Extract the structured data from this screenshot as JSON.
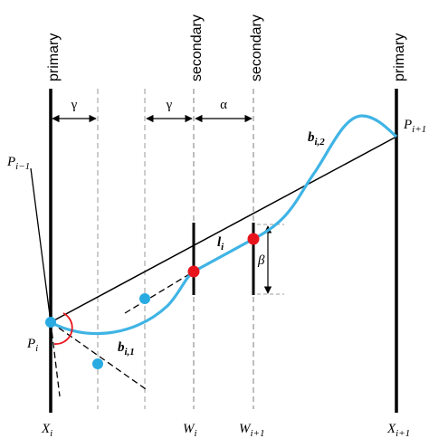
{
  "labels": {
    "primary_left": "primary",
    "primary_right": "primary",
    "secondary_1": "secondary",
    "secondary_2": "secondary",
    "gamma_left": "γ",
    "gamma_mid": "γ",
    "alpha": "α",
    "beta": "β",
    "P_prev": {
      "base": "P",
      "sub": "i−1"
    },
    "P_i": {
      "base": "P",
      "sub": "i"
    },
    "P_next": {
      "base": "P",
      "sub": "i+1"
    },
    "b_i1": {
      "base": "b",
      "sub": "i,1"
    },
    "b_i2": {
      "base": "b",
      "sub": "i,2"
    },
    "l_i": {
      "base": "l",
      "sub": "i"
    },
    "X_i": {
      "base": "X",
      "sub": "i"
    },
    "W_i": {
      "base": "W",
      "sub": "i"
    },
    "W_next": {
      "base": "W",
      "sub": "i+1"
    },
    "X_next": {
      "base": "X",
      "sub": "i+1"
    }
  },
  "colors": {
    "curve": "#3fb4e5",
    "control_point": "#29abe2",
    "waypoint": "#e8141c",
    "angle_arc": "#e8141c",
    "guide_line": "#b0b0b0",
    "line": "#000000"
  }
}
